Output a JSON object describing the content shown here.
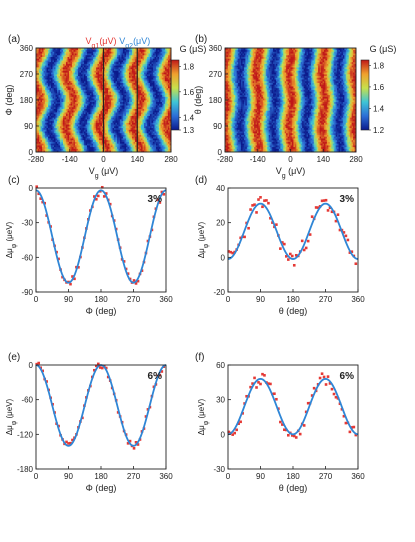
{
  "panels": [
    {
      "id": "a",
      "label": "(a)",
      "type": "heatmap",
      "xlabel": "V",
      "xlabel_sub": "g",
      "xlabel_unit": "(μV)",
      "ylabel": "Φ (deg)",
      "xticks": [
        "-280",
        "-140",
        "0",
        "140",
        "280"
      ],
      "xtick_values": [
        -280,
        -140,
        0,
        140,
        280
      ],
      "yticks": [
        "0",
        "90",
        "180",
        "270",
        "360"
      ],
      "ytick_values": [
        0,
        90,
        180,
        270,
        360
      ],
      "xlim": [
        -280,
        280
      ],
      "ylim": [
        0,
        360
      ],
      "colorbar_title": "G (μS)",
      "colorbar_ticks": [
        "1.3",
        "1.4",
        "1.6",
        "1.8"
      ],
      "colorbar_tick_values": [
        1.3,
        1.4,
        1.6,
        1.8
      ],
      "colorbar_range": [
        1.3,
        1.85
      ],
      "stripe_period": 140,
      "phase_shift_deg": 0,
      "modulation_amplitude": 18,
      "top_labels": [
        {
          "text": "V",
          "sub": "g1",
          "unit": "(μV)",
          "color": "#e53935"
        },
        {
          "text": "V",
          "sub": "g2",
          "unit": "(μV)",
          "color": "#2f86d6"
        }
      ],
      "vertical_lines": [
        {
          "x": 0,
          "color": "#222222"
        },
        {
          "x": 140,
          "color": "#222222"
        }
      ]
    },
    {
      "id": "b",
      "label": "(b)",
      "type": "heatmap",
      "xlabel": "V",
      "xlabel_sub": "g",
      "xlabel_unit": "(μV)",
      "ylabel": "θ (deg)",
      "xticks": [
        "-280",
        "-140",
        "0",
        "140",
        "280"
      ],
      "xtick_values": [
        -280,
        -140,
        0,
        140,
        280
      ],
      "yticks": [
        "0",
        "90",
        "180",
        "270",
        "360"
      ],
      "ytick_values": [
        0,
        90,
        180,
        270,
        360
      ],
      "xlim": [
        -280,
        280
      ],
      "ylim": [
        0,
        360
      ],
      "colorbar_title": "G (μS)",
      "colorbar_ticks": [
        "1.2",
        "1.4",
        "1.6",
        "1.8"
      ],
      "colorbar_tick_values": [
        1.2,
        1.4,
        1.6,
        1.8
      ],
      "colorbar_range": [
        1.2,
        1.85
      ],
      "stripe_period": 140,
      "phase_shift_deg": 0,
      "modulation_amplitude": 7,
      "top_labels": [],
      "vertical_lines": []
    },
    {
      "id": "c",
      "label": "(c)",
      "type": "scatter",
      "percent": "3%",
      "xlabel": "Φ (deg)",
      "ylabel": "Δμ",
      "ylabel_sub": "φ",
      "ylabel_unit": "(μeV)",
      "xlim": [
        0,
        360
      ],
      "ylim": [
        -90,
        0
      ],
      "xticks": [
        "0",
        "90",
        "180",
        "270",
        "360"
      ],
      "xtick_values": [
        0,
        90,
        180,
        270,
        360
      ],
      "yticks": [
        "0",
        "-30",
        "-60",
        "-90"
      ],
      "ytick_values": [
        0,
        -30,
        -60,
        -90
      ],
      "fit": {
        "offset": -42,
        "amplitude": 40,
        "phase": 0,
        "harmonic": 2
      },
      "noise": 4,
      "seed": 11
    },
    {
      "id": "d",
      "label": "(d)",
      "type": "scatter",
      "percent": "3%",
      "xlabel": "θ (deg)",
      "ylabel": "Δμ",
      "ylabel_sub": "φ",
      "ylabel_unit": "(μeV)",
      "xlim": [
        0,
        360
      ],
      "ylim": [
        -20,
        40
      ],
      "xticks": [
        "0",
        "90",
        "180",
        "270",
        "360"
      ],
      "xtick_values": [
        0,
        90,
        180,
        270,
        360
      ],
      "yticks": [
        "-20",
        "0",
        "20",
        "40"
      ],
      "ytick_values": [
        -20,
        0,
        20,
        40
      ],
      "fit": {
        "offset": 15,
        "amplitude": -16,
        "phase": 0,
        "harmonic": 2
      },
      "noise": 5,
      "seed": 23
    },
    {
      "id": "e",
      "label": "(e)",
      "type": "scatter",
      "percent": "6%",
      "xlabel": "Φ (deg)",
      "ylabel": "Δμ",
      "ylabel_sub": "φ",
      "ylabel_unit": "(μeV)",
      "xlim": [
        0,
        360
      ],
      "ylim": [
        -180,
        0
      ],
      "xticks": [
        "0",
        "90",
        "180",
        "270",
        "360"
      ],
      "xtick_values": [
        0,
        90,
        180,
        270,
        360
      ],
      "yticks": [
        "0",
        "-60",
        "-120",
        "-180"
      ],
      "ytick_values": [
        0,
        -60,
        -120,
        -180
      ],
      "fit": {
        "offset": -70,
        "amplitude": 70,
        "phase": 0,
        "harmonic": 2
      },
      "noise": 6,
      "seed": 37
    },
    {
      "id": "f",
      "label": "(f)",
      "type": "scatter",
      "percent": "6%",
      "xlabel": "θ (deg)",
      "ylabel": "Δμ",
      "ylabel_sub": "φ",
      "ylabel_unit": "(μeV)",
      "xlim": [
        0,
        360
      ],
      "ylim": [
        -30,
        60
      ],
      "xticks": [
        "0",
        "90",
        "180",
        "270",
        "360"
      ],
      "xtick_values": [
        0,
        90,
        180,
        270,
        360
      ],
      "yticks": [
        "-30",
        "0",
        "30",
        "60"
      ],
      "ytick_values": [
        -30,
        0,
        30,
        60
      ],
      "fit": {
        "offset": 24,
        "amplitude": -24,
        "phase": 0,
        "harmonic": 2
      },
      "noise": 6,
      "seed": 49
    }
  ],
  "colors": {
    "fit": "#2f86d6",
    "points": "#e53935",
    "axis": "#222222",
    "text": "#222222"
  },
  "chart_data": [
    {
      "type": "heatmap",
      "title": "",
      "xlabel": "Vg (μV)",
      "ylabel": "Φ (deg)",
      "colorbar_label": "G (μS)",
      "x_range": [
        -280,
        280
      ],
      "y_range": [
        0,
        360
      ],
      "z_range": [
        1.3,
        1.8
      ]
    },
    {
      "type": "heatmap",
      "title": "",
      "xlabel": "Vg (μV)",
      "ylabel": "θ (deg)",
      "colorbar_label": "G (μS)",
      "x_range": [
        -280,
        280
      ],
      "y_range": [
        0,
        360
      ],
      "z_range": [
        1.2,
        1.8
      ]
    },
    {
      "type": "scatter",
      "title": "",
      "annotation": "3%",
      "xlabel": "Φ (deg)",
      "ylabel": "Δμφ (μeV)",
      "xlim": [
        0,
        360
      ],
      "ylim": [
        -90,
        0
      ],
      "fit_function": "Δμφ = -42 + 40 cos(2Φ)"
    },
    {
      "type": "scatter",
      "title": "",
      "annotation": "3%",
      "xlabel": "θ (deg)",
      "ylabel": "Δμφ (μeV)",
      "xlim": [
        0,
        360
      ],
      "ylim": [
        -20,
        40
      ],
      "fit_function": "Δμφ = 15 - 16 cos(2θ)"
    },
    {
      "type": "scatter",
      "title": "",
      "annotation": "6%",
      "xlabel": "Φ (deg)",
      "ylabel": "Δμφ (μeV)",
      "xlim": [
        0,
        360
      ],
      "ylim": [
        -180,
        0
      ],
      "fit_function": "Δμφ = -70 + 70 cos(2Φ)"
    },
    {
      "type": "scatter",
      "title": "",
      "annotation": "6%",
      "xlabel": "θ (deg)",
      "ylabel": "Δμφ (μeV)",
      "xlim": [
        0,
        360
      ],
      "ylim": [
        -30,
        60
      ],
      "fit_function": "Δμφ = 24 - 24 cos(2θ)"
    }
  ]
}
